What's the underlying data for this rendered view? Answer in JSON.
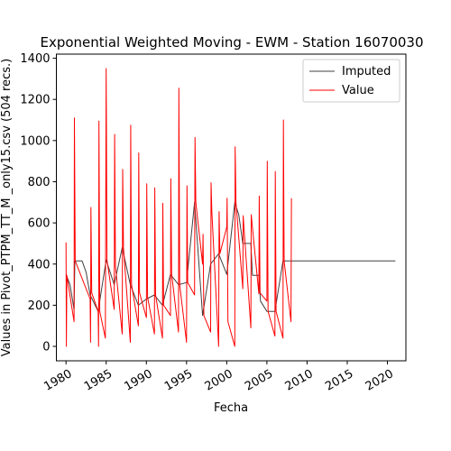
{
  "chart_data": {
    "type": "line",
    "title": "Exponential Weighted Moving - EWM - Station 16070030",
    "xlabel": "Fecha",
    "ylabel": "Values in Pivot_PTPM_TT_M _only15.csv (504 recs.)",
    "xlim": [
      1978.8,
      2022.3
    ],
    "ylim": [
      -70,
      1420
    ],
    "x_ticks": [
      1980,
      1985,
      1990,
      1995,
      2000,
      2005,
      2010,
      2015,
      2020
    ],
    "x_tick_labels": [
      "1980",
      "1985",
      "1990",
      "1995",
      "2000",
      "2005",
      "2010",
      "2015",
      "2020"
    ],
    "y_ticks": [
      0,
      200,
      400,
      600,
      800,
      1000,
      1200,
      1400
    ],
    "y_tick_labels": [
      "0",
      "200",
      "400",
      "600",
      "800",
      "1000",
      "1200",
      "1400"
    ],
    "grid": false,
    "legend_position": "upper right",
    "series": [
      {
        "name": "Imputed",
        "color": "#404040",
        "points": [
          [
            1980.0,
            350
          ],
          [
            1980.5,
            300
          ],
          [
            1981.0,
            180
          ],
          [
            1981.1,
            415
          ],
          [
            1982.0,
            415
          ],
          [
            1982.5,
            360
          ],
          [
            1983.0,
            250
          ],
          [
            1984.0,
            170
          ],
          [
            1985.0,
            420
          ],
          [
            1986.0,
            300
          ],
          [
            1987.0,
            480
          ],
          [
            1988.0,
            300
          ],
          [
            1989.0,
            200
          ],
          [
            1990.0,
            230
          ],
          [
            1991.0,
            250
          ],
          [
            1992.0,
            200
          ],
          [
            1993.0,
            350
          ],
          [
            1994.0,
            300
          ],
          [
            1995.0,
            310
          ],
          [
            1996.0,
            700
          ],
          [
            1997.0,
            150
          ],
          [
            1998.0,
            400
          ],
          [
            1999.0,
            450
          ],
          [
            2000.0,
            350
          ],
          [
            2001.0,
            700
          ],
          [
            2001.5,
            640
          ],
          [
            2002.0,
            500
          ],
          [
            2003.0,
            500
          ],
          [
            2003.2,
            345
          ],
          [
            2004.0,
            345
          ],
          [
            2004.2,
            220
          ],
          [
            2005.0,
            170
          ],
          [
            2006.0,
            170
          ],
          [
            2007.0,
            415
          ],
          [
            2008.0,
            415
          ],
          [
            2021.0,
            415
          ]
        ]
      },
      {
        "name": "Value",
        "color": "#ff0000",
        "points": [
          [
            1980.0,
            505
          ],
          [
            1980.05,
            0
          ],
          [
            1980.1,
            345
          ],
          [
            1981.0,
            120
          ],
          [
            1981.05,
            1110
          ],
          [
            1981.15,
            415
          ],
          [
            1983.0,
            230
          ],
          [
            1983.05,
            20
          ],
          [
            1983.1,
            675
          ],
          [
            1983.2,
            260
          ],
          [
            1984.0,
            170
          ],
          [
            1984.05,
            0
          ],
          [
            1984.1,
            1095
          ],
          [
            1984.2,
            170
          ],
          [
            1984.9,
            40
          ],
          [
            1985.0,
            1350
          ],
          [
            1985.1,
            420
          ],
          [
            1986.0,
            180
          ],
          [
            1986.05,
            1030
          ],
          [
            1986.15,
            390
          ],
          [
            1987.0,
            60
          ],
          [
            1987.05,
            860
          ],
          [
            1987.15,
            480
          ],
          [
            1988.0,
            20
          ],
          [
            1988.05,
            1075
          ],
          [
            1988.15,
            300
          ],
          [
            1989.0,
            100
          ],
          [
            1989.05,
            940
          ],
          [
            1989.15,
            260
          ],
          [
            1990.0,
            140
          ],
          [
            1990.05,
            790
          ],
          [
            1990.15,
            240
          ],
          [
            1991.0,
            60
          ],
          [
            1991.05,
            770
          ],
          [
            1991.15,
            250
          ],
          [
            1992.0,
            40
          ],
          [
            1992.05,
            695
          ],
          [
            1992.15,
            200
          ],
          [
            1993.0,
            150
          ],
          [
            1993.05,
            815
          ],
          [
            1993.15,
            350
          ],
          [
            1994.0,
            70
          ],
          [
            1994.05,
            1255
          ],
          [
            1994.15,
            300
          ],
          [
            1995.0,
            20
          ],
          [
            1995.05,
            780
          ],
          [
            1995.15,
            310
          ],
          [
            1996.0,
            250
          ],
          [
            1996.05,
            1015
          ],
          [
            1996.15,
            700
          ],
          [
            1997.0,
            400
          ],
          [
            1997.05,
            545
          ],
          [
            1997.15,
            150
          ],
          [
            1998.0,
            70
          ],
          [
            1998.05,
            795
          ],
          [
            1998.15,
            650
          ],
          [
            1999.0,
            0
          ],
          [
            1999.05,
            655
          ],
          [
            1999.15,
            450
          ],
          [
            2000.0,
            580
          ],
          [
            2000.05,
            720
          ],
          [
            2000.15,
            120
          ],
          [
            2001.0,
            0
          ],
          [
            2001.05,
            970
          ],
          [
            2001.15,
            700
          ],
          [
            2002.0,
            280
          ],
          [
            2002.05,
            635
          ],
          [
            2003.0,
            90
          ],
          [
            2003.05,
            640
          ],
          [
            2004.0,
            255
          ],
          [
            2004.05,
            730
          ],
          [
            2004.15,
            260
          ],
          [
            2005.0,
            220
          ],
          [
            2005.05,
            900
          ],
          [
            2005.15,
            170
          ],
          [
            2006.0,
            50
          ],
          [
            2006.05,
            850
          ],
          [
            2006.15,
            170
          ],
          [
            2007.0,
            40
          ],
          [
            2007.05,
            1100
          ],
          [
            2007.15,
            415
          ],
          [
            2008.0,
            120
          ],
          [
            2008.05,
            720
          ]
        ]
      }
    ]
  }
}
